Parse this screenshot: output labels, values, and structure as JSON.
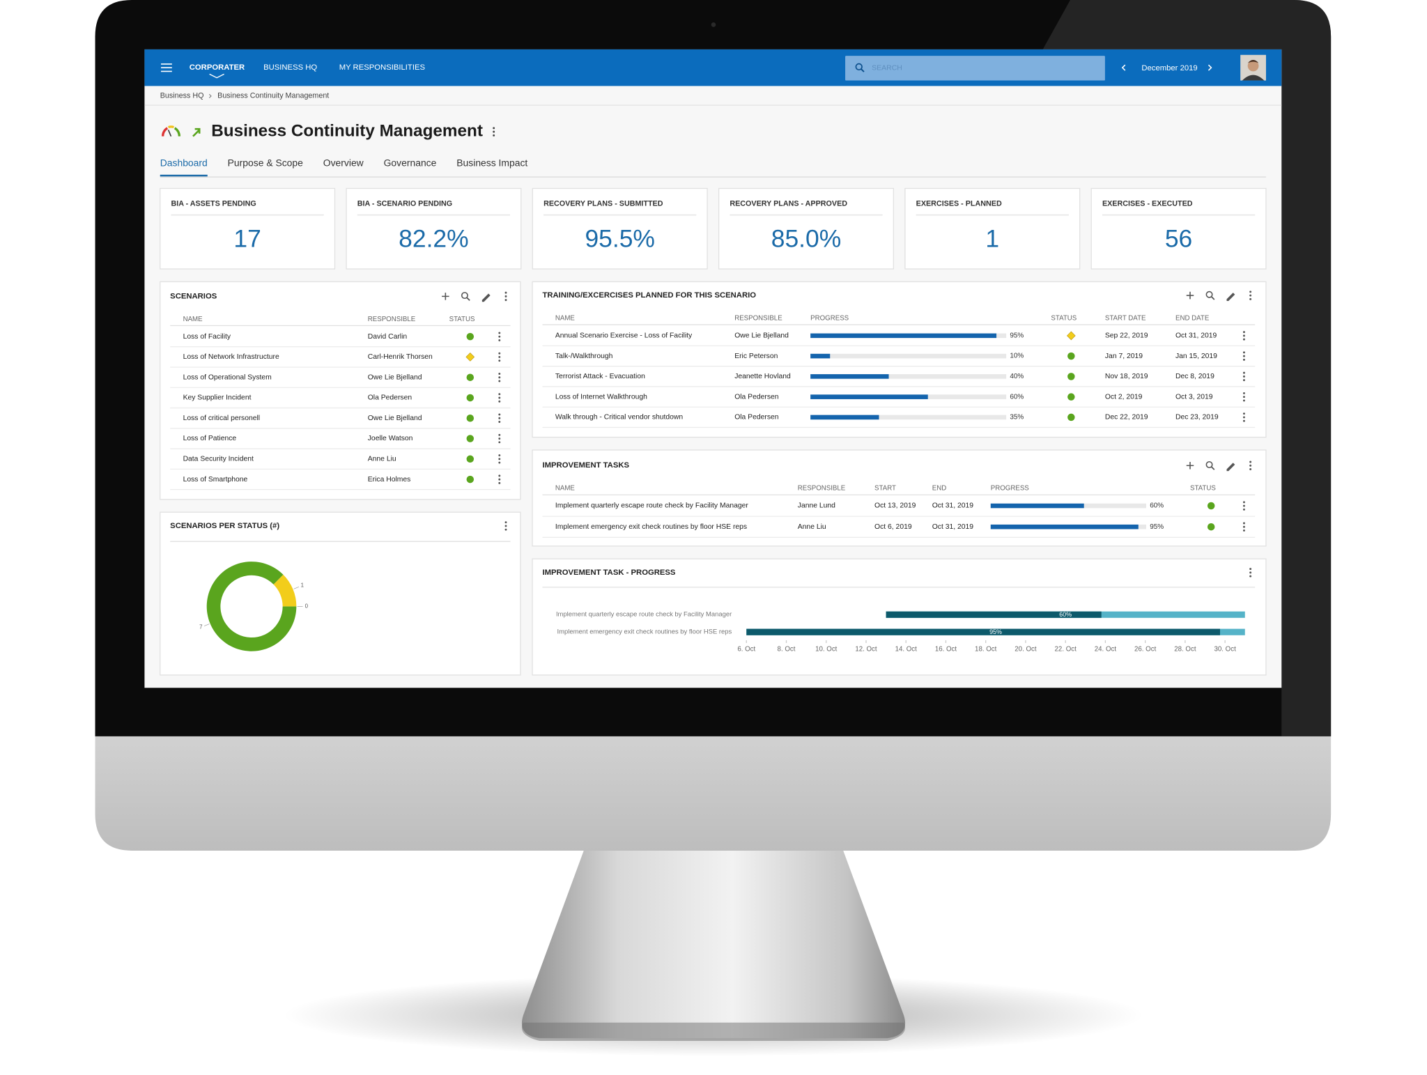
{
  "header": {
    "logo": "CORPORATER",
    "nav": [
      "BUSINESS HQ",
      "MY RESPONSIBILITIES"
    ],
    "search": "SEARCH",
    "period": "December 2019"
  },
  "breadcrumb": [
    "Business HQ",
    "Business Continuity Management"
  ],
  "title": "Business Continuity Management",
  "tabs": [
    "Dashboard",
    "Purpose & Scope",
    "Overview",
    "Governance",
    "Business Impact"
  ],
  "active_tab": 0,
  "kpis": [
    {
      "label": "BIA - ASSETS PENDING",
      "value": 17
    },
    {
      "label": "BIA - SCENARIO PENDING",
      "value": "82.2%"
    },
    {
      "label": "RECOVERY PLANS - SUBMITTED",
      "value": "95.5%"
    },
    {
      "label": "RECOVERY PLANS - APPROVED",
      "value": "85.0%"
    },
    {
      "label": "EXERCISES - PLANNED",
      "value": 1
    },
    {
      "label": "EXERCISES - EXECUTED",
      "value": 56
    }
  ],
  "status_colors": {
    "green": "#5aa51e",
    "yellow": "#f2cd1b"
  },
  "scenarios": {
    "title": "SCENARIOS",
    "columns": [
      "NAME",
      "RESPONSIBLE",
      "STATUS"
    ],
    "rows": [
      {
        "name": "Loss of Facility",
        "responsible": "David Carlin",
        "status": "green"
      },
      {
        "name": "Loss of Network Infrastructure",
        "responsible": "Carl-Henrik Thorsen",
        "status": "yellow"
      },
      {
        "name": "Loss of Operational System",
        "responsible": "Owe Lie Bjelland",
        "status": "green"
      },
      {
        "name": "Key Supplier Incident",
        "responsible": "Ola Pedersen",
        "status": "green"
      },
      {
        "name": "Loss of critical personell",
        "responsible": "Owe Lie Bjelland",
        "status": "green"
      },
      {
        "name": "Loss of Patience",
        "responsible": "Joelle Watson",
        "status": "green"
      },
      {
        "name": "Data Security Incident",
        "responsible": "Anne Liu",
        "status": "green"
      },
      {
        "name": "Loss of Smartphone",
        "responsible": "Erica Holmes",
        "status": "green"
      }
    ]
  },
  "training": {
    "title": "TRAINING/EXCERCISES PLANNED FOR THIS SCENARIO",
    "columns": [
      "NAME",
      "RESPONSIBLE",
      "PROGRESS",
      "STATUS",
      "START DATE",
      "END DATE"
    ],
    "rows": [
      {
        "name": "Annual Scenario Exercise - Loss of Facility",
        "responsible": "Owe Lie Bjelland",
        "progress": 95,
        "progress_label": "95%",
        "status": "yellow",
        "start": "Sep 22, 2019",
        "end": "Oct 31, 2019"
      },
      {
        "name": "Talk-/Walkthrough",
        "responsible": "Eric Peterson",
        "progress": 10,
        "progress_label": "10%",
        "status": "green",
        "start": "Jan 7, 2019",
        "end": "Jan 15, 2019"
      },
      {
        "name": "Terrorist Attack - Evacuation",
        "responsible": "Jeanette Hovland",
        "progress": 40,
        "progress_label": "40%",
        "status": "green",
        "start": "Nov 18, 2019",
        "end": "Dec 8, 2019"
      },
      {
        "name": "Loss of Internet Walkthrough",
        "responsible": "Ola Pedersen",
        "progress": 60,
        "progress_label": "60%",
        "status": "green",
        "start": "Oct 2, 2019",
        "end": "Oct 3, 2019"
      },
      {
        "name": "Walk through - Critical vendor shutdown",
        "responsible": "Ola Pedersen",
        "progress": 35,
        "progress_label": "35%",
        "status": "green",
        "start": "Dec 22, 2019",
        "end": "Dec 23, 2019"
      }
    ]
  },
  "improvement_tasks": {
    "title": "IMPROVEMENT TASKS",
    "columns": [
      "NAME",
      "RESPONSIBLE",
      "START",
      "END",
      "PROGRESS",
      "STATUS"
    ],
    "rows": [
      {
        "name": "Implement quarterly escape route check by Facility Manager",
        "responsible": "Janne Lund",
        "start": "Oct 13, 2019",
        "end": "Oct 31, 2019",
        "progress": 60,
        "progress_label": "60%",
        "status": "green"
      },
      {
        "name": "Implement emergency exit check routines by floor HSE reps",
        "responsible": "Anne Liu",
        "start": "Oct 6, 2019",
        "end": "Oct 31, 2019",
        "progress": 95,
        "progress_label": "95%",
        "status": "green"
      }
    ]
  },
  "chart_data": [
    {
      "type": "pie",
      "title": "SCENARIOS PER STATUS (#)",
      "values": [
        7,
        1,
        0
      ],
      "colors": [
        "#5aa51e",
        "#f2cd1b",
        "#d9d9d9"
      ],
      "donut": true
    },
    {
      "type": "gantt",
      "title": "IMPROVEMENT TASK - PROGRESS",
      "categories": [
        "Implement quarterly escape route check by Facility Manager",
        "Implement emergency exit check routines by floor HSE reps"
      ],
      "start": [
        13,
        6
      ],
      "end": [
        31,
        31
      ],
      "values": [
        60,
        95
      ],
      "value_labels": [
        "60%",
        "95%"
      ],
      "color": "#0d5a6b",
      "track_color": "#55b3c8",
      "xlim": [
        6,
        31
      ],
      "xticks": [
        {
          "value": 6,
          "label": "6. Oct"
        },
        {
          "value": 8,
          "label": "8. Oct"
        },
        {
          "value": 10,
          "label": "10. Oct"
        },
        {
          "value": 12,
          "label": "12. Oct"
        },
        {
          "value": 14,
          "label": "14. Oct"
        },
        {
          "value": 16,
          "label": "16. Oct"
        },
        {
          "value": 18,
          "label": "18. Oct"
        },
        {
          "value": 20,
          "label": "20. Oct"
        },
        {
          "value": 22,
          "label": "22. Oct"
        },
        {
          "value": 24,
          "label": "24. Oct"
        },
        {
          "value": 26,
          "label": "26. Oct"
        },
        {
          "value": 28,
          "label": "28. Oct"
        },
        {
          "value": 30,
          "label": "30. Oct"
        }
      ]
    }
  ]
}
